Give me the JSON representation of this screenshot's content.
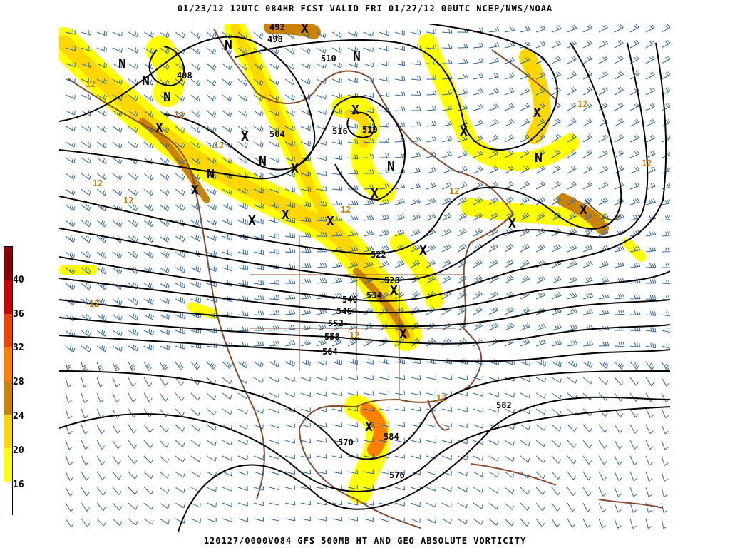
{
  "header": {
    "title": "01/23/12 12UTC   084HR   FCST VALID FRI 01/27/12 00UTC   NCEP/NWS/NOAA"
  },
  "footer": {
    "caption": "120127/0000V084 GFS 500MB HT AND GEO ABSOLUTE VORTICITY"
  },
  "colorbar": {
    "labels": [
      "40",
      "36",
      "32",
      "28",
      "24",
      "20",
      "16"
    ],
    "colors": [
      "#8b0000",
      "#cc0000",
      "#ee4400",
      "#ff8000",
      "#cc8400",
      "#ffd700",
      "#ffff00",
      "#ffffff"
    ]
  },
  "contour_labels": [
    "492",
    "498",
    "498",
    "510",
    "504",
    "516",
    "510",
    "522",
    "528",
    "534",
    "540",
    "546",
    "552",
    "558",
    "564",
    "570",
    "584",
    "576",
    "582"
  ],
  "vorticity_labels": [
    "12",
    "12",
    "12",
    "12",
    "12",
    "12",
    "12",
    "12",
    "12",
    "12",
    "12",
    "12"
  ],
  "markers": {
    "low": "X",
    "high": "N"
  },
  "colors": {
    "contour": "#000000",
    "coastline": "#8b4a2b",
    "barb": "#2e6aa8",
    "vort_contour": "#cc7a00",
    "vort_yellow": "#ffff00",
    "vort_gold": "#ffd700",
    "vort_brown": "#cc8400",
    "vort_orange": "#ff8000"
  }
}
